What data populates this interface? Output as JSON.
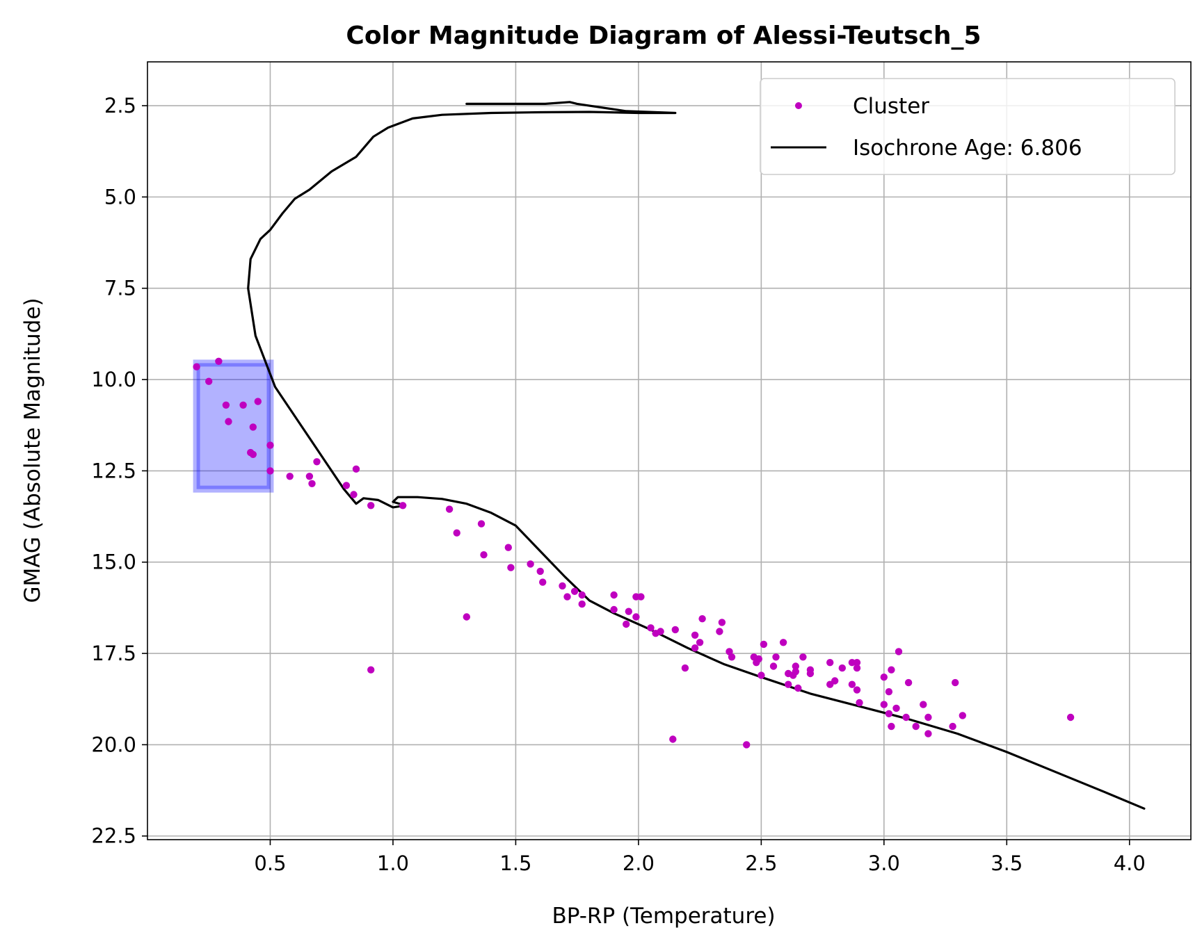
{
  "chart_data": {
    "type": "scatter",
    "title": "Color Magnitude Diagram of Alessi-Teutsch_5",
    "xlabel": "BP-RP (Temperature)",
    "ylabel": "GMAG (Absolute Magnitude)",
    "xlim": [
      0.0,
      4.25
    ],
    "ylim": [
      22.6,
      1.3
    ],
    "y_inverted": true,
    "grid": true,
    "legend_position": "top-right",
    "xticks": [
      0.5,
      1.0,
      1.5,
      2.0,
      2.5,
      3.0,
      3.5,
      4.0
    ],
    "xtick_labels": [
      "0.5",
      "1.0",
      "1.5",
      "2.0",
      "2.5",
      "3.0",
      "3.5",
      "4.0"
    ],
    "yticks": [
      2.5,
      5.0,
      7.5,
      10.0,
      12.5,
      15.0,
      17.5,
      20.0,
      22.5
    ],
    "ytick_labels": [
      "2.5",
      "5.0",
      "7.5",
      "10.0",
      "12.5",
      "15.0",
      "17.5",
      "20.0",
      "22.5"
    ],
    "colors": {
      "cluster": "#bf00bf",
      "isochrone": "#000000",
      "highlight_fill": "#0000ff",
      "grid": "#b0b0b0"
    },
    "highlight_box": {
      "x_range": [
        0.2,
        0.5
      ],
      "y_range": [
        9.55,
        13.0
      ]
    },
    "series": [
      {
        "name": "Cluster",
        "kind": "scatter",
        "points": [
          [
            0.2,
            9.65
          ],
          [
            0.29,
            9.5
          ],
          [
            0.25,
            10.05
          ],
          [
            0.32,
            10.7
          ],
          [
            0.39,
            10.7
          ],
          [
            0.45,
            10.6
          ],
          [
            0.33,
            11.15
          ],
          [
            0.43,
            11.3
          ],
          [
            0.42,
            12.0
          ],
          [
            0.43,
            12.05
          ],
          [
            0.5,
            11.8
          ],
          [
            0.5,
            12.5
          ],
          [
            0.58,
            12.65
          ],
          [
            0.66,
            12.65
          ],
          [
            0.67,
            12.85
          ],
          [
            0.69,
            12.25
          ],
          [
            0.81,
            12.9
          ],
          [
            0.84,
            13.15
          ],
          [
            0.85,
            12.45
          ],
          [
            0.91,
            13.45
          ],
          [
            1.04,
            13.45
          ],
          [
            1.23,
            13.55
          ],
          [
            1.26,
            14.2
          ],
          [
            1.36,
            13.95
          ],
          [
            1.37,
            14.8
          ],
          [
            1.47,
            14.6
          ],
          [
            1.48,
            15.15
          ],
          [
            1.56,
            15.05
          ],
          [
            1.6,
            15.25
          ],
          [
            1.61,
            15.55
          ],
          [
            1.69,
            15.65
          ],
          [
            1.71,
            15.95
          ],
          [
            1.74,
            15.8
          ],
          [
            1.77,
            15.9
          ],
          [
            1.77,
            16.15
          ],
          [
            1.9,
            15.9
          ],
          [
            1.9,
            16.3
          ],
          [
            1.95,
            16.7
          ],
          [
            1.96,
            16.35
          ],
          [
            1.99,
            15.95
          ],
          [
            1.99,
            16.5
          ],
          [
            2.01,
            15.95
          ],
          [
            2.05,
            16.8
          ],
          [
            2.07,
            16.95
          ],
          [
            2.09,
            16.9
          ],
          [
            2.15,
            16.85
          ],
          [
            2.14,
            19.85
          ],
          [
            2.19,
            17.9
          ],
          [
            2.23,
            17.0
          ],
          [
            2.23,
            17.35
          ],
          [
            2.25,
            17.2
          ],
          [
            2.26,
            16.55
          ],
          [
            2.33,
            16.9
          ],
          [
            2.34,
            16.65
          ],
          [
            2.37,
            17.45
          ],
          [
            2.38,
            17.6
          ],
          [
            2.44,
            20.0
          ],
          [
            2.47,
            17.6
          ],
          [
            2.48,
            17.75
          ],
          [
            2.49,
            17.65
          ],
          [
            2.5,
            18.1
          ],
          [
            2.51,
            17.25
          ],
          [
            2.55,
            17.85
          ],
          [
            2.56,
            17.6
          ],
          [
            2.59,
            17.2
          ],
          [
            2.61,
            18.05
          ],
          [
            2.61,
            18.35
          ],
          [
            2.63,
            18.1
          ],
          [
            2.64,
            17.85
          ],
          [
            2.64,
            18.0
          ],
          [
            2.65,
            18.45
          ],
          [
            2.67,
            17.6
          ],
          [
            2.7,
            17.95
          ],
          [
            2.7,
            18.05
          ],
          [
            2.78,
            17.75
          ],
          [
            2.78,
            18.35
          ],
          [
            2.8,
            18.25
          ],
          [
            2.83,
            17.9
          ],
          [
            2.87,
            17.75
          ],
          [
            2.87,
            18.35
          ],
          [
            2.89,
            18.5
          ],
          [
            2.89,
            17.75
          ],
          [
            2.89,
            17.9
          ],
          [
            2.9,
            18.85
          ],
          [
            3.0,
            18.15
          ],
          [
            3.0,
            18.9
          ],
          [
            3.02,
            18.55
          ],
          [
            3.02,
            19.15
          ],
          [
            3.03,
            17.95
          ],
          [
            3.03,
            19.5
          ],
          [
            3.05,
            19.0
          ],
          [
            3.06,
            17.45
          ],
          [
            3.09,
            19.25
          ],
          [
            3.1,
            18.3
          ],
          [
            3.13,
            19.5
          ],
          [
            3.16,
            18.9
          ],
          [
            3.18,
            19.25
          ],
          [
            3.18,
            19.7
          ],
          [
            3.28,
            19.5
          ],
          [
            3.29,
            18.3
          ],
          [
            3.32,
            19.2
          ],
          [
            3.76,
            19.25
          ],
          [
            0.91,
            17.95
          ],
          [
            1.3,
            16.5
          ]
        ]
      },
      {
        "name": "Isochrone Age: 6.806",
        "kind": "line",
        "points": [
          [
            4.06,
            21.75
          ],
          [
            3.9,
            21.3
          ],
          [
            3.7,
            20.75
          ],
          [
            3.5,
            20.2
          ],
          [
            3.3,
            19.7
          ],
          [
            3.1,
            19.3
          ],
          [
            2.9,
            18.95
          ],
          [
            2.7,
            18.6
          ],
          [
            2.5,
            18.15
          ],
          [
            2.35,
            17.8
          ],
          [
            2.2,
            17.35
          ],
          [
            2.05,
            16.85
          ],
          [
            1.9,
            16.4
          ],
          [
            1.8,
            16.05
          ],
          [
            1.7,
            15.4
          ],
          [
            1.6,
            14.7
          ],
          [
            1.5,
            14.0
          ],
          [
            1.4,
            13.65
          ],
          [
            1.3,
            13.4
          ],
          [
            1.2,
            13.27
          ],
          [
            1.1,
            13.22
          ],
          [
            1.02,
            13.22
          ],
          [
            1.0,
            13.35
          ],
          [
            1.05,
            13.45
          ],
          [
            1.0,
            13.5
          ],
          [
            0.94,
            13.3
          ],
          [
            0.88,
            13.25
          ],
          [
            0.85,
            13.4
          ],
          [
            0.8,
            13.0
          ],
          [
            0.72,
            12.2
          ],
          [
            0.62,
            11.2
          ],
          [
            0.52,
            10.2
          ],
          [
            0.44,
            8.8
          ],
          [
            0.41,
            7.5
          ],
          [
            0.42,
            6.7
          ],
          [
            0.46,
            6.15
          ],
          [
            0.5,
            5.9
          ],
          [
            0.55,
            5.45
          ],
          [
            0.6,
            5.05
          ],
          [
            0.66,
            4.8
          ],
          [
            0.75,
            4.3
          ],
          [
            0.85,
            3.9
          ],
          [
            0.92,
            3.35
          ],
          [
            0.98,
            3.1
          ],
          [
            1.08,
            2.85
          ],
          [
            1.2,
            2.75
          ],
          [
            1.4,
            2.7
          ],
          [
            1.6,
            2.68
          ],
          [
            1.8,
            2.67
          ],
          [
            2.0,
            2.7
          ],
          [
            2.15,
            2.7
          ],
          [
            1.95,
            2.65
          ],
          [
            1.75,
            2.45
          ],
          [
            1.72,
            2.4
          ],
          [
            1.62,
            2.45
          ],
          [
            1.4,
            2.45
          ],
          [
            1.3,
            2.45
          ]
        ]
      }
    ],
    "legend": [
      {
        "label": "Cluster",
        "marker": "dot"
      },
      {
        "label": "Isochrone Age: 6.806",
        "marker": "line"
      }
    ]
  }
}
